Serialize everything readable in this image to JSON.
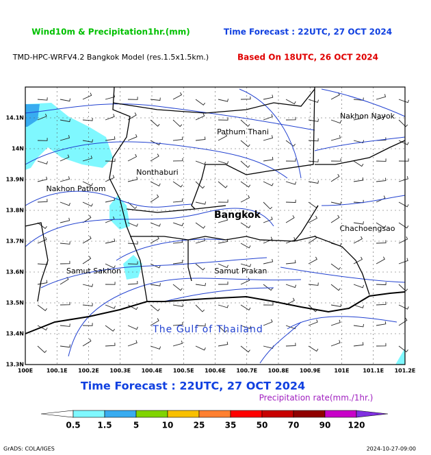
{
  "header": {
    "title": "Wind10m & Precipitation1hr.(mm)",
    "forecast": "Time Forecast : 22UTC, 27 OCT 2024",
    "model": "TMD-HPC-WRFV4.2 Bangkok Model (res.1.5x1.5km.)",
    "based_on": "Based On 18UTC, 26 OCT 2024"
  },
  "map": {
    "xlim": [
      100,
      101.2
    ],
    "ylim": [
      13.3,
      14.2
    ],
    "xticks": [
      {
        "value": 100,
        "label": "100E"
      },
      {
        "value": 100.1,
        "label": "100.1E"
      },
      {
        "value": 100.2,
        "label": "100.2E"
      },
      {
        "value": 100.3,
        "label": "100.3E"
      },
      {
        "value": 100.4,
        "label": "100.4E"
      },
      {
        "value": 100.5,
        "label": "100.5E"
      },
      {
        "value": 100.6,
        "label": "100.6E"
      },
      {
        "value": 100.7,
        "label": "100.7E"
      },
      {
        "value": 100.8,
        "label": "100.8E"
      },
      {
        "value": 100.9,
        "label": "100.9E"
      },
      {
        "value": 101,
        "label": "101E"
      },
      {
        "value": 101.1,
        "label": "101.1E"
      },
      {
        "value": 101.2,
        "label": "101.2E"
      }
    ],
    "yticks": [
      {
        "value": 13.3,
        "label": "13.3N"
      },
      {
        "value": 13.4,
        "label": "13.4N"
      },
      {
        "value": 13.5,
        "label": "13.5N"
      },
      {
        "value": 13.6,
        "label": "13.6N"
      },
      {
        "value": 13.7,
        "label": "13.7N"
      },
      {
        "value": 13.8,
        "label": "13.8N"
      },
      {
        "value": 13.9,
        "label": "13.9N"
      },
      {
        "value": 14,
        "label": "14N"
      },
      {
        "value": 14.1,
        "label": "14.1N"
      }
    ],
    "places": [
      "Nakhon Nayok",
      "Pathum Thani",
      "Nonthaburi",
      "Nakhon Pathom",
      "Bangkok",
      "Chachoengsao",
      "Samut Sakhon",
      "Samut Prakan",
      "The Gulf of Thailand"
    ]
  },
  "footer": {
    "forecast": "Time Forecast : 22UTC, 27 OCT 2024",
    "colorbar_title": "Precipitation rate(mm./1hr.)",
    "credit": "GrADS: COLA/IGES",
    "timestamp": "2024-10-27-09:00"
  },
  "colorbar": {
    "labels": [
      0.5,
      1.5,
      5,
      10,
      25,
      35,
      50,
      70,
      90,
      120
    ],
    "colors": [
      "#ffffff",
      "#7ff8ff",
      "#38acf0",
      "#80d400",
      "#f8c000",
      "#ff8030",
      "#ff0000",
      "#c80000",
      "#900000",
      "#c800c8",
      "#8030e0"
    ]
  }
}
